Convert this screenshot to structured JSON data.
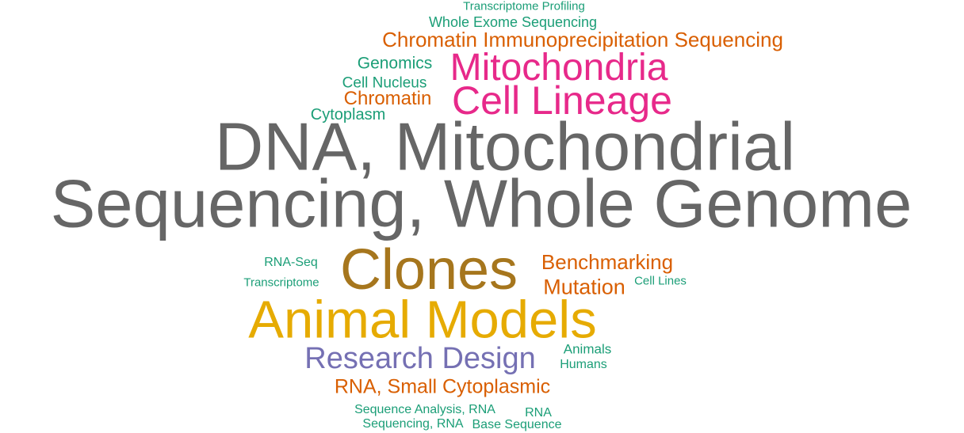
{
  "palette": {
    "gray": "#666666",
    "magenta": "#e7298a",
    "olive": "#a6761d",
    "gold": "#e6ab02",
    "purple": "#7570b3",
    "orange": "#d95f02",
    "teal": "#1b9e77"
  },
  "words": [
    {
      "text": "Transcriptome Profiling",
      "color": "teal"
    },
    {
      "text": "Whole Exome Sequencing",
      "color": "teal"
    },
    {
      "text": "Chromatin Immunoprecipitation Sequencing",
      "color": "orange"
    },
    {
      "text": "Genomics",
      "color": "teal"
    },
    {
      "text": "Mitochondria",
      "color": "magenta"
    },
    {
      "text": "Cell Nucleus",
      "color": "teal"
    },
    {
      "text": "Chromatin",
      "color": "orange"
    },
    {
      "text": "Cell Lineage",
      "color": "magenta"
    },
    {
      "text": "Cytoplasm",
      "color": "teal"
    },
    {
      "text": "DNA, Mitochondrial",
      "color": "gray"
    },
    {
      "text": "Sequencing, Whole Genome",
      "color": "gray"
    },
    {
      "text": "RNA-Seq",
      "color": "teal"
    },
    {
      "text": "Clones",
      "color": "olive"
    },
    {
      "text": "Benchmarking",
      "color": "orange"
    },
    {
      "text": "Transcriptome",
      "color": "teal"
    },
    {
      "text": "Mutation",
      "color": "orange"
    },
    {
      "text": "Cell Lines",
      "color": "teal"
    },
    {
      "text": "Animal Models",
      "color": "gold"
    },
    {
      "text": "Research Design",
      "color": "purple"
    },
    {
      "text": "Animals",
      "color": "teal"
    },
    {
      "text": "Humans",
      "color": "teal"
    },
    {
      "text": "RNA, Small Cytoplasmic",
      "color": "orange"
    },
    {
      "text": "Sequence Analysis, RNA",
      "color": "teal"
    },
    {
      "text": "RNA",
      "color": "teal"
    },
    {
      "text": "Sequencing, RNA",
      "color": "teal"
    },
    {
      "text": "Base Sequence",
      "color": "teal"
    }
  ]
}
